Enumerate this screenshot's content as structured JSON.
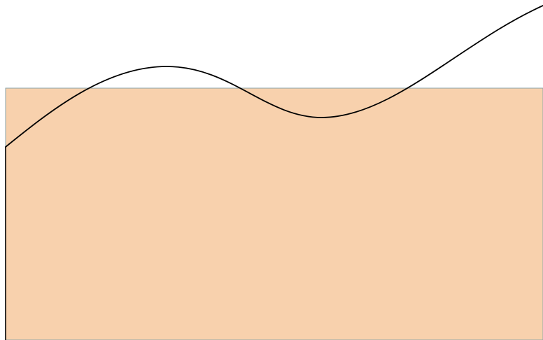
{
  "diagram": {
    "shapes": [
      {
        "id": "filled-region",
        "fill": "#f8d1ad",
        "stroke": "#8aa3a8"
      },
      {
        "id": "curve",
        "stroke": "#000000"
      }
    ]
  }
}
